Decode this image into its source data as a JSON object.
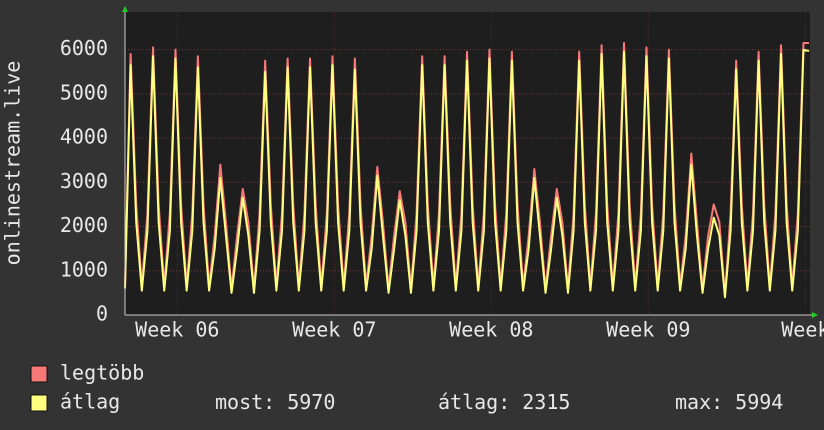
{
  "chart_data": {
    "type": "line",
    "y_label": "onlinestream.live",
    "x": [
      0,
      6,
      12,
      18,
      24,
      30,
      36,
      42,
      48,
      54,
      60,
      66,
      72,
      78,
      84,
      90,
      96,
      102,
      108,
      114,
      120,
      126,
      132,
      138,
      144,
      150,
      156,
      162,
      168,
      174,
      180,
      186,
      192,
      198,
      204,
      210,
      216,
      222,
      228,
      234,
      240,
      246,
      252,
      258,
      264,
      270,
      276,
      282,
      288,
      294,
      300,
      306,
      312,
      318,
      324,
      330,
      336,
      342,
      348,
      354,
      360,
      366,
      372,
      378,
      384,
      390,
      396,
      402,
      408,
      414,
      420,
      426,
      432,
      438,
      444,
      450,
      456,
      462,
      468,
      474,
      480,
      486,
      492,
      498,
      504,
      510,
      516,
      522,
      528,
      534,
      540,
      546,
      552,
      558,
      564,
      570,
      576,
      582,
      588,
      594,
      600,
      606,
      612,
      618,
      624,
      630,
      636,
      642,
      648,
      654,
      660,
      666,
      672,
      678,
      684,
      690,
      696,
      702,
      708,
      714,
      720,
      726,
      732
    ],
    "series": [
      {
        "name": "legtöbb",
        "color": "#f87878",
        "values": [
          700,
          5900,
          2500,
          650,
          2300,
          6050,
          2500,
          650,
          2300,
          6000,
          2500,
          650,
          2300,
          5850,
          2500,
          650,
          1800,
          3400,
          2100,
          600,
          1800,
          2850,
          2100,
          600,
          2300,
          5750,
          2500,
          650,
          2300,
          5800,
          2500,
          650,
          2300,
          5800,
          2500,
          650,
          2300,
          5850,
          2500,
          650,
          2300,
          5800,
          2500,
          650,
          1800,
          3350,
          2100,
          600,
          1800,
          2800,
          2100,
          600,
          2300,
          5850,
          2500,
          650,
          2300,
          5850,
          2500,
          650,
          2300,
          5950,
          2500,
          650,
          2300,
          6000,
          2500,
          650,
          2300,
          5950,
          2500,
          650,
          1800,
          3300,
          2100,
          600,
          1800,
          2850,
          2100,
          600,
          2300,
          5950,
          2500,
          650,
          2300,
          6100,
          2500,
          650,
          2300,
          6150,
          2500,
          650,
          2300,
          6050,
          2500,
          650,
          2300,
          6000,
          2500,
          650,
          1800,
          3650,
          2100,
          600,
          1800,
          2500,
          2100,
          450,
          2300,
          5750,
          2500,
          650,
          2300,
          5950,
          2500,
          650,
          2300,
          6100,
          2500,
          650,
          2300,
          6150,
          6150
        ]
      },
      {
        "name": "átlag",
        "color": "#ffff80",
        "values": [
          600,
          5650,
          2100,
          550,
          1900,
          5850,
          2100,
          550,
          1900,
          5800,
          2100,
          550,
          1900,
          5600,
          2100,
          550,
          1500,
          3100,
          1800,
          500,
          1500,
          2650,
          1800,
          500,
          1900,
          5500,
          2100,
          550,
          1900,
          5600,
          2100,
          550,
          1900,
          5600,
          2100,
          550,
          1900,
          5650,
          2100,
          550,
          1900,
          5550,
          2100,
          550,
          1500,
          3150,
          1800,
          500,
          1500,
          2600,
          1800,
          500,
          1900,
          5650,
          2100,
          550,
          1900,
          5650,
          2100,
          550,
          1900,
          5750,
          2100,
          550,
          1900,
          5800,
          2100,
          550,
          1900,
          5750,
          2100,
          550,
          1500,
          3100,
          1800,
          500,
          1500,
          2650,
          1800,
          500,
          1900,
          5750,
          2100,
          550,
          1900,
          5900,
          2100,
          550,
          1900,
          5950,
          2100,
          550,
          1900,
          5850,
          2100,
          550,
          1900,
          5800,
          2100,
          550,
          1500,
          3400,
          1800,
          500,
          1500,
          2200,
          1800,
          400,
          1900,
          5550,
          2100,
          550,
          1900,
          5750,
          2100,
          550,
          1900,
          5900,
          2100,
          550,
          1900,
          5994,
          5970
        ]
      }
    ],
    "xlim": [
      0,
      733
    ],
    "xticks": [
      {
        "value": 56,
        "label": "Week 06"
      },
      {
        "value": 224,
        "label": "Week 07"
      },
      {
        "value": 392,
        "label": "Week 08"
      },
      {
        "value": 560,
        "label": "Week 09"
      },
      {
        "value": 728,
        "label": "Week"
      }
    ],
    "ylim": [
      0,
      6850
    ],
    "yticks": [
      0,
      1000,
      2000,
      3000,
      4000,
      5000,
      6000
    ],
    "grid": true,
    "stats": [
      {
        "label": "most:",
        "value": 5970
      },
      {
        "label": "átlag:",
        "value": 2315
      },
      {
        "label": "max:",
        "value": 5994
      }
    ]
  }
}
